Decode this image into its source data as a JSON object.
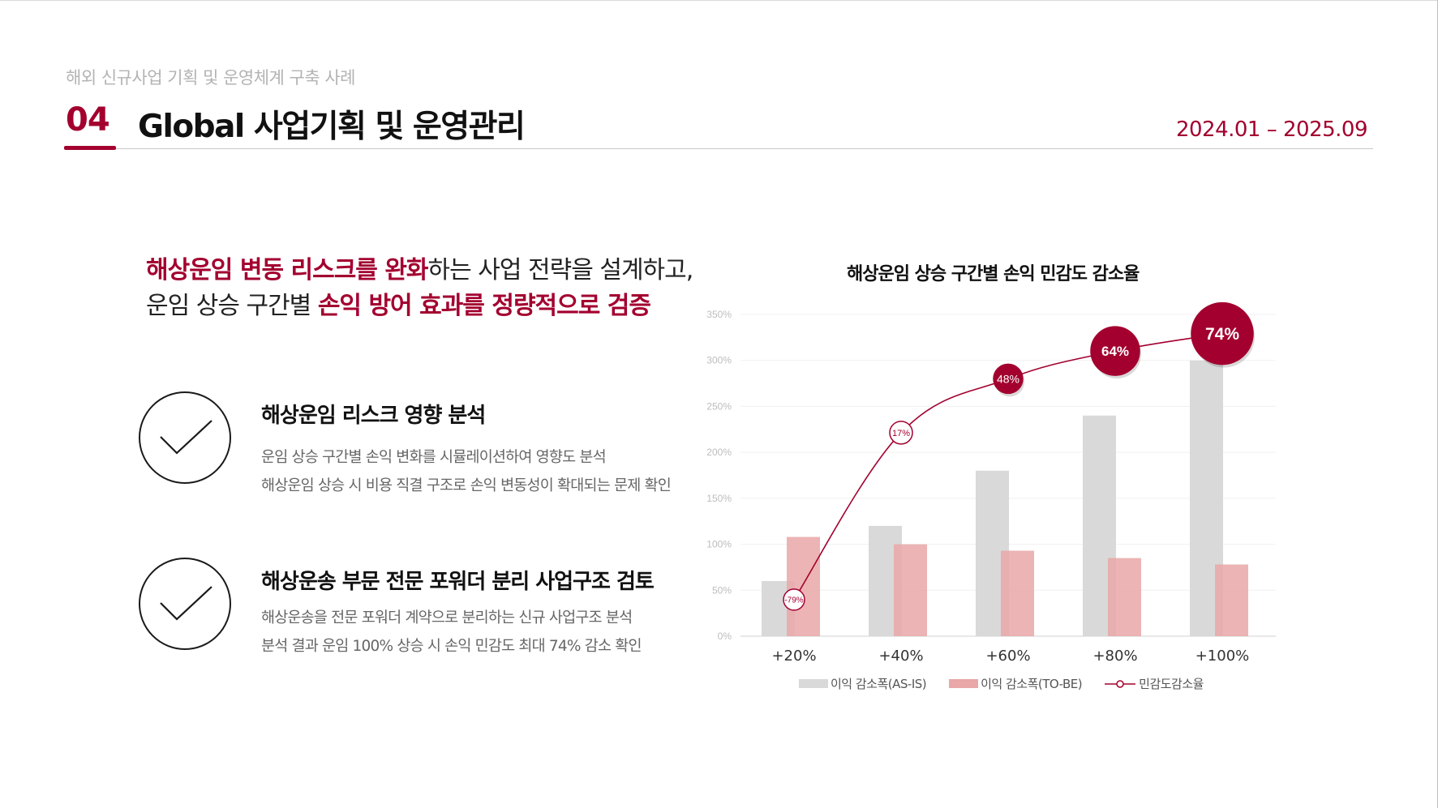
{
  "header": {
    "breadcrumb": "해외 신규사업 기획 및 운영체계 구축 사례",
    "section_number": "04",
    "title": "Global 사업기획 및 운영관리",
    "date_range": "2024.01 – 2025.09"
  },
  "headline": {
    "line1_highlight": "해상운임 변동 리스크를 완화",
    "line1_rest": "하는 사업 전략을 설계하고,",
    "line2_prefix": "운임 상승 구간별 ",
    "line2_highlight": "손익 방어 효과를 정량적으로 검증"
  },
  "features": [
    {
      "icon": "check-circle-icon",
      "title": "해상운임 리스크 영향 분석",
      "lines": [
        "운임 상승 구간별 손익 변화를 시뮬레이션하여 영향도 분석",
        "해상운임 상승 시 비용 직결 구조로 손익 변동성이 확대되는 문제 확인"
      ]
    },
    {
      "icon": "check-circle-icon",
      "title": "해상운송 부문 전문 포워더 분리 사업구조 검토",
      "lines": [
        "해상운송을 전문 포워더 계약으로 분리하는 신규 사업구조 분석",
        "분석 결과 운임 100% 상승 시 손익 민감도 최대 74% 감소 확인"
      ]
    }
  ],
  "chart_data": {
    "type": "bar",
    "title": "해상운임 상승 구간별 손익 민감도 감소율",
    "categories": [
      "+20%",
      "+40%",
      "+60%",
      "+80%",
      "+100%"
    ],
    "yticks": [
      "0%",
      "50%",
      "100%",
      "150%",
      "200%",
      "250%",
      "300%",
      "350%"
    ],
    "ylim": [
      0,
      350
    ],
    "grid": true,
    "legend_position": "bottom",
    "series": [
      {
        "name": "이익 감소폭(AS-IS)",
        "kind": "bar",
        "color": "#d9d9d9",
        "values": [
          60,
          120,
          180,
          240,
          300
        ]
      },
      {
        "name": "이익 감소폭(TO-BE)",
        "kind": "bar",
        "color": "#e9a7a7",
        "values": [
          108,
          100,
          93,
          85,
          78
        ]
      },
      {
        "name": "민감도감소율",
        "kind": "line",
        "color": "#a3002f",
        "labels": [
          "-79%",
          "17%",
          "48%",
          "64%",
          "74%"
        ],
        "values": [
          -79,
          17,
          48,
          64,
          74
        ]
      }
    ]
  }
}
